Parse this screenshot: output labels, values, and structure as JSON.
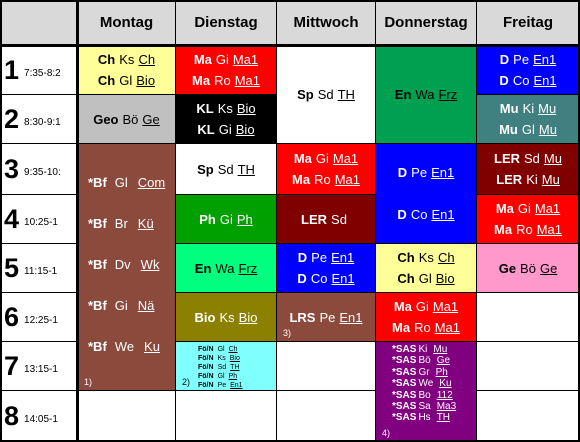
{
  "days": [
    "Montag",
    "Dienstag",
    "Mittwoch",
    "Donnerstag",
    "Freitag"
  ],
  "periods": [
    {
      "num": "1",
      "time": "7:35-8:2"
    },
    {
      "num": "2",
      "time": "8:30-9:1"
    },
    {
      "num": "3",
      "time": "9:35-10:"
    },
    {
      "num": "4",
      "time": "10:25-1"
    },
    {
      "num": "5",
      "time": "11:15-1"
    },
    {
      "num": "6",
      "time": "12:25-1"
    },
    {
      "num": "7",
      "time": "13:15-1"
    },
    {
      "num": "8",
      "time": "14:05-1"
    }
  ],
  "cells": [
    {
      "day": 0,
      "start": 1,
      "span": 1,
      "bg": "#ffff99",
      "fg": "#000000",
      "lines": [
        {
          "s": "Ch",
          "t": "Ks",
          "r": "Ch"
        },
        {
          "s": "Ch",
          "t": "Gl",
          "r": "Bio"
        }
      ]
    },
    {
      "day": 0,
      "start": 2,
      "span": 1,
      "bg": "#c0c0c0",
      "fg": "#000000",
      "lines": [
        {
          "s": "Geo",
          "t": "Bö",
          "r": "Ge"
        }
      ]
    },
    {
      "day": 0,
      "start": 3,
      "span": 5,
      "bg": "#8b4a3c",
      "fg": "#ffffff",
      "variant": "bf",
      "footnote": "1)",
      "lines": [
        {
          "s": "*Bf",
          "t": "Gl",
          "r": "Com"
        },
        {
          "s": "*Bf",
          "t": "Br",
          "r": "Kü"
        },
        {
          "s": "*Bf",
          "t": "Dv",
          "r": "Wk"
        },
        {
          "s": "*Bf",
          "t": "Gi",
          "r": "Nä"
        },
        {
          "s": "*Bf",
          "t": "We",
          "r": "Ku"
        }
      ]
    },
    {
      "day": 0,
      "start": 8,
      "span": 1,
      "bg": "#ffffff",
      "fg": "#000000",
      "lines": []
    },
    {
      "day": 1,
      "start": 1,
      "span": 1,
      "bg": "#ff0000",
      "fg": "#ffffff",
      "lines": [
        {
          "s": "Ma",
          "t": "Gi",
          "r": "Ma1"
        },
        {
          "s": "Ma",
          "t": "Ro",
          "r": "Ma1"
        }
      ]
    },
    {
      "day": 1,
      "start": 2,
      "span": 1,
      "bg": "#000000",
      "fg": "#ffffff",
      "lines": [
        {
          "s": "KL",
          "t": "Ks",
          "r": "Bio"
        },
        {
          "s": "KL",
          "t": "Gi",
          "r": "Bio"
        }
      ]
    },
    {
      "day": 1,
      "start": 3,
      "span": 1,
      "bg": "#ffffff",
      "fg": "#000000",
      "lines": [
        {
          "s": "Sp",
          "t": "Sd",
          "r": "TH"
        }
      ]
    },
    {
      "day": 1,
      "start": 4,
      "span": 1,
      "bg": "#00a000",
      "fg": "#ffffff",
      "lines": [
        {
          "s": "Ph",
          "t": "Gi",
          "r": "Ph"
        }
      ]
    },
    {
      "day": 1,
      "start": 5,
      "span": 1,
      "bg": "#00ff7f",
      "fg": "#000000",
      "lines": [
        {
          "s": "En",
          "t": "Wa",
          "r": "Frz"
        }
      ]
    },
    {
      "day": 1,
      "start": 6,
      "span": 1,
      "bg": "#8b8000",
      "fg": "#ffffff",
      "lines": [
        {
          "s": "Bio",
          "t": "Ks",
          "r": "Bio"
        }
      ]
    },
    {
      "day": 1,
      "start": 7,
      "span": 1,
      "bg": "#80ffff",
      "fg": "#000000",
      "variant": "sm",
      "footnote": "2)",
      "lines": [
        {
          "s": "Fö/N",
          "t": "Gl",
          "r": "Ch"
        },
        {
          "s": "Fö/N",
          "t": "Ks",
          "r": "Bio"
        },
        {
          "s": "Fö/N",
          "t": "Sd",
          "r": "TH"
        },
        {
          "s": "Fö/N",
          "t": "Gl",
          "r": "Ph"
        },
        {
          "s": "Fö/N",
          "t": "Pe",
          "r": "En1"
        }
      ]
    },
    {
      "day": 1,
      "start": 8,
      "span": 1,
      "bg": "#ffffff",
      "fg": "#000000",
      "lines": []
    },
    {
      "day": 2,
      "start": 1,
      "span": 2,
      "bg": "#ffffff",
      "fg": "#000000",
      "lines": [
        {
          "s": "Sp",
          "t": "Sd",
          "r": "TH"
        }
      ]
    },
    {
      "day": 2,
      "start": 3,
      "span": 1,
      "bg": "#ff0000",
      "fg": "#ffffff",
      "lines": [
        {
          "s": "Ma",
          "t": "Gi",
          "r": "Ma1"
        },
        {
          "s": "Ma",
          "t": "Ro",
          "r": "Ma1"
        }
      ]
    },
    {
      "day": 2,
      "start": 4,
      "span": 1,
      "bg": "#800000",
      "fg": "#ffffff",
      "lines": [
        {
          "s": "LER",
          "t": "Sd",
          "r": ""
        }
      ]
    },
    {
      "day": 2,
      "start": 5,
      "span": 1,
      "bg": "#0000ff",
      "fg": "#ffffff",
      "lines": [
        {
          "s": "D",
          "t": "Pe",
          "r": "En1"
        },
        {
          "s": "D",
          "t": "Co",
          "r": "En1"
        }
      ]
    },
    {
      "day": 2,
      "start": 6,
      "span": 1,
      "bg": "#8b4a3c",
      "fg": "#ffffff",
      "footnote": "3)",
      "lines": [
        {
          "s": "LRS",
          "t": "Pe",
          "r": "En1"
        }
      ]
    },
    {
      "day": 2,
      "start": 7,
      "span": 1,
      "bg": "#ffffff",
      "fg": "#000000",
      "lines": []
    },
    {
      "day": 2,
      "start": 8,
      "span": 1,
      "bg": "#ffffff",
      "fg": "#000000",
      "lines": []
    },
    {
      "day": 3,
      "start": 1,
      "span": 2,
      "bg": "#00a050",
      "fg": "#000000",
      "lines": [
        {
          "s": "En",
          "t": "Wa",
          "r": "Frz"
        }
      ]
    },
    {
      "day": 3,
      "start": 3,
      "span": 2,
      "bg": "#0000ff",
      "fg": "#ffffff",
      "lines": [
        {
          "s": "D",
          "t": "Pe",
          "r": "En1"
        },
        {
          "s": "",
          "t": "",
          "r": ""
        },
        {
          "s": "D",
          "t": "Co",
          "r": "En1"
        }
      ]
    },
    {
      "day": 3,
      "start": 5,
      "span": 1,
      "bg": "#ffff99",
      "fg": "#000000",
      "lines": [
        {
          "s": "Ch",
          "t": "Ks",
          "r": "Ch"
        },
        {
          "s": "Ch",
          "t": "Gl",
          "r": "Bio"
        }
      ]
    },
    {
      "day": 3,
      "start": 6,
      "span": 1,
      "bg": "#ff0000",
      "fg": "#ffffff",
      "lines": [
        {
          "s": "Ma",
          "t": "Gi",
          "r": "Ma1"
        },
        {
          "s": "Ma",
          "t": "Ro",
          "r": "Ma1"
        }
      ]
    },
    {
      "day": 3,
      "start": 7,
      "span": 2,
      "bg": "#800080",
      "fg": "#ffffff",
      "variant": "sas",
      "footnote": "4)",
      "lines": [
        {
          "s": "*SAS",
          "t": "Ki",
          "r": "Mu"
        },
        {
          "s": "*SAS",
          "t": "Bö",
          "r": "Ge"
        },
        {
          "s": "*SAS",
          "t": "Gr",
          "r": "Ph"
        },
        {
          "s": "*SAS",
          "t": "We",
          "r": "Ku"
        },
        {
          "s": "*SAS",
          "t": "Bo",
          "r": "112"
        },
        {
          "s": "*SAS",
          "t": "Sa",
          "r": "Ma3"
        },
        {
          "s": "*SAS",
          "t": "Hs",
          "r": "TH"
        }
      ]
    },
    {
      "day": 4,
      "start": 1,
      "span": 1,
      "bg": "#0000ff",
      "fg": "#ffffff",
      "lines": [
        {
          "s": "D",
          "t": "Pe",
          "r": "En1"
        },
        {
          "s": "D",
          "t": "Co",
          "r": "En1"
        }
      ]
    },
    {
      "day": 4,
      "start": 2,
      "span": 1,
      "bg": "#408080",
      "fg": "#ffffff",
      "lines": [
        {
          "s": "Mu",
          "t": "Ki",
          "r": "Mu"
        },
        {
          "s": "Mu",
          "t": "Gl",
          "r": "Mu"
        }
      ]
    },
    {
      "day": 4,
      "start": 3,
      "span": 1,
      "bg": "#800000",
      "fg": "#ffffff",
      "lines": [
        {
          "s": "LER",
          "t": "Sd",
          "r": "Mu"
        },
        {
          "s": "LER",
          "t": "Ki",
          "r": "Mu"
        }
      ]
    },
    {
      "day": 4,
      "start": 4,
      "span": 1,
      "bg": "#ff0000",
      "fg": "#ffffff",
      "lines": [
        {
          "s": "Ma",
          "t": "Gi",
          "r": "Ma1"
        },
        {
          "s": "Ma",
          "t": "Ro",
          "r": "Ma1"
        }
      ]
    },
    {
      "day": 4,
      "start": 5,
      "span": 1,
      "bg": "#ff99cc",
      "fg": "#000000",
      "lines": [
        {
          "s": "Ge",
          "t": "Bö",
          "r": "Ge"
        }
      ]
    },
    {
      "day": 4,
      "start": 6,
      "span": 1,
      "bg": "#ffffff",
      "fg": "#000000",
      "lines": []
    },
    {
      "day": 4,
      "start": 7,
      "span": 1,
      "bg": "#ffffff",
      "fg": "#000000",
      "lines": []
    },
    {
      "day": 4,
      "start": 8,
      "span": 1,
      "bg": "#ffffff",
      "fg": "#000000",
      "lines": []
    }
  ]
}
